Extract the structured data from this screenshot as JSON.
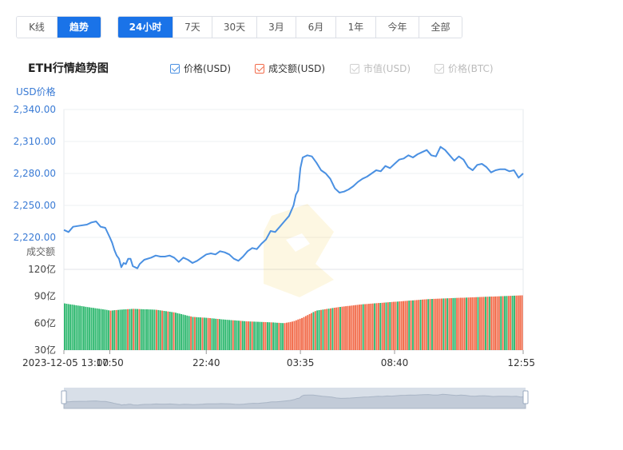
{
  "toolbar": {
    "chart_mode": [
      "K线",
      "趋势"
    ],
    "active_mode": 1,
    "ranges": [
      "24小时",
      "7天",
      "30天",
      "3月",
      "6月",
      "1年",
      "今年",
      "全部"
    ],
    "active_range": 0
  },
  "title": "ETH行情趋势图",
  "legend": [
    {
      "label": "价格(USD)",
      "checked": true,
      "color": "#4a90e2"
    },
    {
      "label": "成交额(USD)",
      "checked": true,
      "color": "#f26b4a"
    },
    {
      "label": "市值(USD)",
      "checked": false,
      "color": "#cccccc"
    },
    {
      "label": "价格(BTC)",
      "checked": false,
      "color": "#cccccc"
    }
  ],
  "colors": {
    "price_line": "#4a90e2",
    "volume_up": "#f26b4a",
    "volume_down": "#2eb86f",
    "axis_text_price": "#3a7bd5",
    "axis_text_vol": "#333333",
    "slider_bg": "#d8dfe8",
    "grid": "#eef0f3"
  },
  "chart_data": {
    "type": "line",
    "title": "ETH行情趋势图",
    "price_axis_label": "USD价格",
    "volume_axis_label": "成交额",
    "price_ticks": [
      "2,340.00",
      "2,310.00",
      "2,280.00",
      "2,250.00",
      "2,220.00"
    ],
    "price_ylim": [
      2190,
      2340
    ],
    "volume_ticks": [
      "120亿",
      "90亿",
      "60亿",
      "30亿"
    ],
    "volume_ylim": [
      30,
      120
    ],
    "x_ticks": [
      "2023-12-05 13:00",
      "17:50",
      "22:40",
      "03:35",
      "08:40",
      "12:55"
    ],
    "x_tick_positions": [
      0,
      0.1,
      0.31,
      0.515,
      0.72,
      1.0
    ],
    "price_series": [
      {
        "t": 0.0,
        "v": 2227
      },
      {
        "t": 0.01,
        "v": 2225
      },
      {
        "t": 0.02,
        "v": 2230
      },
      {
        "t": 0.035,
        "v": 2231
      },
      {
        "t": 0.05,
        "v": 2232
      },
      {
        "t": 0.06,
        "v": 2234
      },
      {
        "t": 0.07,
        "v": 2235
      },
      {
        "t": 0.08,
        "v": 2230
      },
      {
        "t": 0.09,
        "v": 2229
      },
      {
        "t": 0.1,
        "v": 2220
      },
      {
        "t": 0.105,
        "v": 2215
      },
      {
        "t": 0.11,
        "v": 2208
      },
      {
        "t": 0.115,
        "v": 2203
      },
      {
        "t": 0.12,
        "v": 2200
      },
      {
        "t": 0.125,
        "v": 2192
      },
      {
        "t": 0.13,
        "v": 2196
      },
      {
        "t": 0.135,
        "v": 2195
      },
      {
        "t": 0.14,
        "v": 2200
      },
      {
        "t": 0.145,
        "v": 2200
      },
      {
        "t": 0.15,
        "v": 2193
      },
      {
        "t": 0.16,
        "v": 2191
      },
      {
        "t": 0.165,
        "v": 2195
      },
      {
        "t": 0.175,
        "v": 2199
      },
      {
        "t": 0.19,
        "v": 2201
      },
      {
        "t": 0.2,
        "v": 2203
      },
      {
        "t": 0.21,
        "v": 2202
      },
      {
        "t": 0.22,
        "v": 2202
      },
      {
        "t": 0.23,
        "v": 2203
      },
      {
        "t": 0.24,
        "v": 2201
      },
      {
        "t": 0.25,
        "v": 2197
      },
      {
        "t": 0.26,
        "v": 2201
      },
      {
        "t": 0.27,
        "v": 2199
      },
      {
        "t": 0.28,
        "v": 2196
      },
      {
        "t": 0.29,
        "v": 2198
      },
      {
        "t": 0.3,
        "v": 2201
      },
      {
        "t": 0.31,
        "v": 2204
      },
      {
        "t": 0.32,
        "v": 2205
      },
      {
        "t": 0.33,
        "v": 2204
      },
      {
        "t": 0.34,
        "v": 2207
      },
      {
        "t": 0.35,
        "v": 2206
      },
      {
        "t": 0.36,
        "v": 2204
      },
      {
        "t": 0.37,
        "v": 2200
      },
      {
        "t": 0.38,
        "v": 2198
      },
      {
        "t": 0.39,
        "v": 2202
      },
      {
        "t": 0.4,
        "v": 2207
      },
      {
        "t": 0.41,
        "v": 2210
      },
      {
        "t": 0.42,
        "v": 2209
      },
      {
        "t": 0.43,
        "v": 2214
      },
      {
        "t": 0.44,
        "v": 2218
      },
      {
        "t": 0.45,
        "v": 2226
      },
      {
        "t": 0.46,
        "v": 2225
      },
      {
        "t": 0.47,
        "v": 2230
      },
      {
        "t": 0.48,
        "v": 2235
      },
      {
        "t": 0.49,
        "v": 2240
      },
      {
        "t": 0.5,
        "v": 2250
      },
      {
        "t": 0.505,
        "v": 2260
      },
      {
        "t": 0.51,
        "v": 2264
      },
      {
        "t": 0.515,
        "v": 2285
      },
      {
        "t": 0.52,
        "v": 2295
      },
      {
        "t": 0.53,
        "v": 2297
      },
      {
        "t": 0.54,
        "v": 2296
      },
      {
        "t": 0.55,
        "v": 2290
      },
      {
        "t": 0.56,
        "v": 2283
      },
      {
        "t": 0.57,
        "v": 2280
      },
      {
        "t": 0.58,
        "v": 2275
      },
      {
        "t": 0.59,
        "v": 2266
      },
      {
        "t": 0.6,
        "v": 2262
      },
      {
        "t": 0.61,
        "v": 2263
      },
      {
        "t": 0.62,
        "v": 2265
      },
      {
        "t": 0.63,
        "v": 2268
      },
      {
        "t": 0.64,
        "v": 2272
      },
      {
        "t": 0.65,
        "v": 2275
      },
      {
        "t": 0.66,
        "v": 2277
      },
      {
        "t": 0.67,
        "v": 2280
      },
      {
        "t": 0.68,
        "v": 2283
      },
      {
        "t": 0.69,
        "v": 2282
      },
      {
        "t": 0.7,
        "v": 2287
      },
      {
        "t": 0.71,
        "v": 2285
      },
      {
        "t": 0.72,
        "v": 2289
      },
      {
        "t": 0.73,
        "v": 2293
      },
      {
        "t": 0.74,
        "v": 2294
      },
      {
        "t": 0.75,
        "v": 2297
      },
      {
        "t": 0.76,
        "v": 2295
      },
      {
        "t": 0.77,
        "v": 2298
      },
      {
        "t": 0.78,
        "v": 2300
      },
      {
        "t": 0.79,
        "v": 2302
      },
      {
        "t": 0.8,
        "v": 2297
      },
      {
        "t": 0.81,
        "v": 2296
      },
      {
        "t": 0.82,
        "v": 2305
      },
      {
        "t": 0.83,
        "v": 2302
      },
      {
        "t": 0.84,
        "v": 2297
      },
      {
        "t": 0.85,
        "v": 2292
      },
      {
        "t": 0.86,
        "v": 2296
      },
      {
        "t": 0.87,
        "v": 2293
      },
      {
        "t": 0.88,
        "v": 2286
      },
      {
        "t": 0.89,
        "v": 2283
      },
      {
        "t": 0.9,
        "v": 2288
      },
      {
        "t": 0.91,
        "v": 2289
      },
      {
        "t": 0.92,
        "v": 2286
      },
      {
        "t": 0.93,
        "v": 2281
      },
      {
        "t": 0.94,
        "v": 2283
      },
      {
        "t": 0.95,
        "v": 2284
      },
      {
        "t": 0.96,
        "v": 2284
      },
      {
        "t": 0.97,
        "v": 2282
      },
      {
        "t": 0.98,
        "v": 2283
      },
      {
        "t": 0.99,
        "v": 2276
      },
      {
        "t": 1.0,
        "v": 2280
      }
    ],
    "volume_series": [
      {
        "t": 0.0,
        "v": 82
      },
      {
        "t": 0.05,
        "v": 78
      },
      {
        "t": 0.09,
        "v": 75
      },
      {
        "t": 0.1,
        "v": 74
      },
      {
        "t": 0.12,
        "v": 75
      },
      {
        "t": 0.15,
        "v": 76
      },
      {
        "t": 0.2,
        "v": 75
      },
      {
        "t": 0.24,
        "v": 72
      },
      {
        "t": 0.28,
        "v": 67
      },
      {
        "t": 0.31,
        "v": 66
      },
      {
        "t": 0.35,
        "v": 64
      },
      {
        "t": 0.4,
        "v": 62
      },
      {
        "t": 0.45,
        "v": 61
      },
      {
        "t": 0.48,
        "v": 60
      },
      {
        "t": 0.5,
        "v": 62
      },
      {
        "t": 0.52,
        "v": 66
      },
      {
        "t": 0.55,
        "v": 74
      },
      {
        "t": 0.6,
        "v": 78
      },
      {
        "t": 0.65,
        "v": 81
      },
      {
        "t": 0.7,
        "v": 83
      },
      {
        "t": 0.75,
        "v": 85
      },
      {
        "t": 0.8,
        "v": 87
      },
      {
        "t": 0.85,
        "v": 88
      },
      {
        "t": 0.9,
        "v": 89
      },
      {
        "t": 0.95,
        "v": 90
      },
      {
        "t": 1.0,
        "v": 91
      }
    ]
  }
}
